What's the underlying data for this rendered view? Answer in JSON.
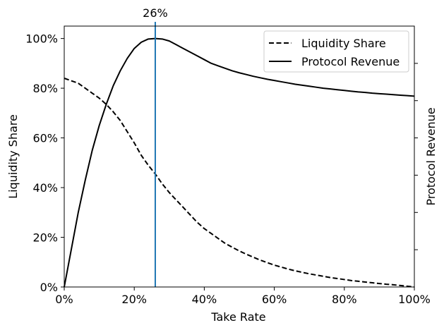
{
  "chart_data": {
    "type": "line",
    "title": "",
    "xlabel": "Take Rate",
    "ylabel": "Liquidity Share",
    "y2label": "Protocol Revenue",
    "xlim": [
      0,
      100
    ],
    "ylim": [
      0,
      105
    ],
    "y2lim": [
      0,
      1.4
    ],
    "x_ticks": [
      "0%",
      "20%",
      "40%",
      "60%",
      "80%",
      "100%"
    ],
    "y_ticks": [
      "0%",
      "20%",
      "40%",
      "60%",
      "80%",
      "100%"
    ],
    "y2_ticks_labeled": false,
    "grid": false,
    "legend": "top-right",
    "annotation": {
      "x": 26,
      "label": "26%",
      "color": "#1f77b4"
    },
    "series": [
      {
        "name": "Liquidity Share",
        "axis": "left",
        "style": "dashed",
        "color": "#000000",
        "x": [
          0,
          2,
          4,
          6,
          8,
          10,
          12,
          14,
          16,
          18,
          20,
          22,
          24,
          26,
          28,
          30,
          32,
          34,
          36,
          38,
          40,
          42,
          44,
          46,
          48,
          50,
          52,
          54,
          56,
          58,
          60,
          62,
          64,
          66,
          68,
          70,
          72,
          74,
          76,
          78,
          80,
          82,
          84,
          86,
          88,
          90,
          92,
          94,
          96,
          98,
          100
        ],
        "y": [
          84,
          83,
          82,
          80,
          78,
          76,
          73.5,
          70.5,
          67,
          62.5,
          58,
          53,
          49,
          45.5,
          41.5,
          38,
          35,
          32,
          29,
          26,
          23.5,
          21.5,
          19.5,
          17.5,
          16,
          14.5,
          13.2,
          12,
          10.8,
          9.8,
          8.8,
          8,
          7.2,
          6.5,
          5.9,
          5.3,
          4.8,
          4.3,
          3.8,
          3.4,
          3,
          2.6,
          2.3,
          2,
          1.7,
          1.4,
          1.1,
          0.9,
          0.6,
          0.3,
          0
        ]
      },
      {
        "name": "Protocol Revenue",
        "axis": "left",
        "style": "solid",
        "color": "#000000",
        "x": [
          0,
          2,
          4,
          6,
          8,
          10,
          12,
          14,
          16,
          18,
          20,
          22,
          24,
          26,
          28,
          30,
          32,
          34,
          36,
          38,
          40,
          42,
          44,
          46,
          48,
          50,
          52,
          54,
          56,
          58,
          60,
          62,
          64,
          66,
          68,
          70,
          72,
          74,
          76,
          78,
          80,
          82,
          84,
          86,
          88,
          90,
          92,
          94,
          96,
          98,
          100
        ],
        "y": [
          0,
          15,
          30,
          43,
          55,
          65,
          73.5,
          81,
          87,
          92,
          96,
          98.5,
          99.8,
          100,
          99.8,
          99,
          97.5,
          96,
          94.5,
          93,
          91.5,
          90,
          89,
          88,
          87,
          86.2,
          85.5,
          84.8,
          84.2,
          83.6,
          83.1,
          82.6,
          82.1,
          81.6,
          81.2,
          80.8,
          80.4,
          80,
          79.7,
          79.4,
          79.1,
          78.8,
          78.5,
          78.3,
          78,
          77.8,
          77.6,
          77.4,
          77.2,
          77,
          76.8
        ]
      }
    ]
  }
}
